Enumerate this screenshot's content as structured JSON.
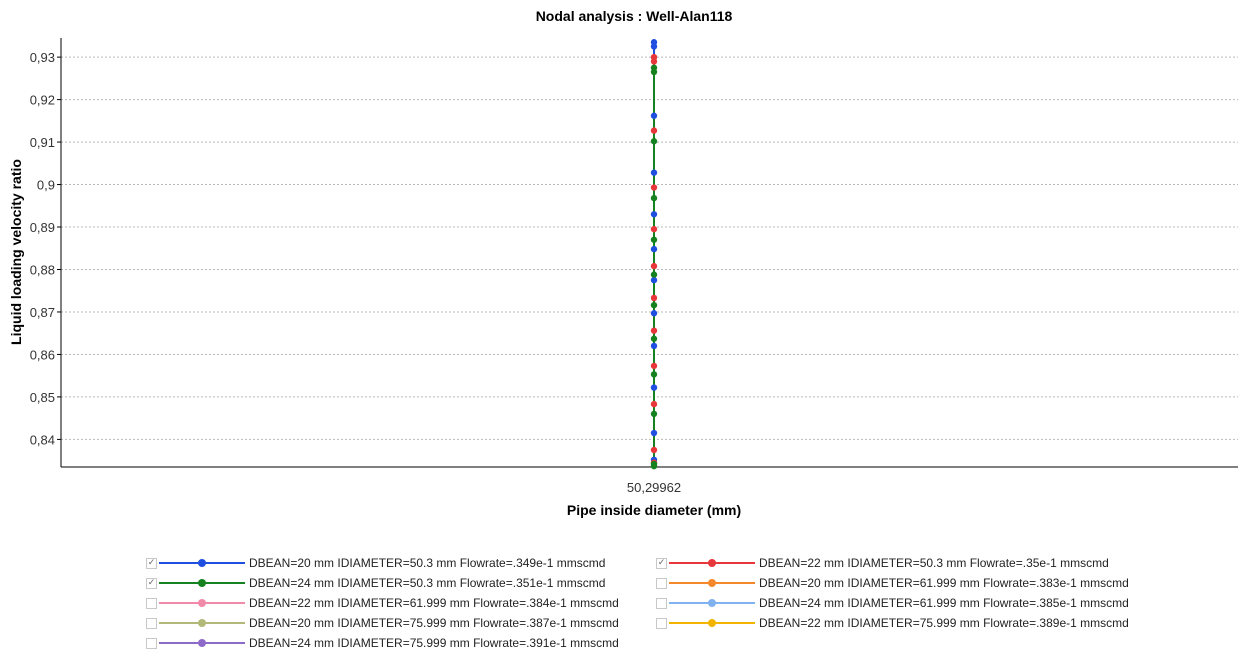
{
  "chart_data": {
    "type": "scatter",
    "title": "Nodal analysis : Well-Alan118",
    "xlabel": "Pipe inside diameter (mm)",
    "ylabel": "Liquid loading velocity ratio",
    "x_ticks": [
      "50,29962"
    ],
    "y_ticks": [
      "0,84",
      "0,85",
      "0,86",
      "0,87",
      "0,88",
      "0,89",
      "0,9",
      "0,91",
      "0,92",
      "0,93"
    ],
    "ylim": [
      0.8335,
      0.9345
    ],
    "grid": true,
    "legend_position": "bottom",
    "x_value": 50.29962,
    "series": [
      {
        "name": "DBEAN=20 mm IDIAMETER=50.3 mm Flowrate=.349e-1 mmscmd",
        "color": "#1f4fe0",
        "checked": true,
        "values": [
          0.9335,
          0.9325,
          0.9162,
          0.9028,
          0.893,
          0.8848,
          0.8775,
          0.8697,
          0.862,
          0.8522,
          0.8415,
          0.8352
        ]
      },
      {
        "name": "DBEAN=22 mm IDIAMETER=50.3 mm Flowrate=.35e-1 mmscmd",
        "color": "#e8373a",
        "checked": true,
        "values": [
          0.93,
          0.929,
          0.9127,
          0.8993,
          0.8895,
          0.8808,
          0.8733,
          0.8656,
          0.8573,
          0.8483,
          0.8375,
          0.8345
        ]
      },
      {
        "name": "DBEAN=24 mm IDIAMETER=50.3 mm Flowrate=.351e-1 mmscmd",
        "color": "#15821f",
        "checked": true,
        "values": [
          0.9275,
          0.9265,
          0.9102,
          0.8968,
          0.887,
          0.8788,
          0.8716,
          0.8637,
          0.8553,
          0.846,
          0.8342,
          0.8337
        ]
      },
      {
        "name": "DBEAN=20 mm IDIAMETER=61.999 mm Flowrate=.383e-1 mmscmd",
        "color": "#f5882a",
        "checked": false,
        "values": []
      },
      {
        "name": "DBEAN=22 mm IDIAMETER=61.999 mm Flowrate=.384e-1 mmscmd",
        "color": "#f08aa8",
        "checked": false,
        "values": []
      },
      {
        "name": "DBEAN=24 mm IDIAMETER=61.999 mm Flowrate=.385e-1 mmscmd",
        "color": "#7fb2ef",
        "checked": false,
        "values": []
      },
      {
        "name": "DBEAN=20 mm IDIAMETER=75.999 mm Flowrate=.387e-1 mmscmd",
        "color": "#b2b978",
        "checked": false,
        "values": []
      },
      {
        "name": "DBEAN=22 mm IDIAMETER=75.999 mm Flowrate=.389e-1 mmscmd",
        "color": "#f2b400",
        "checked": false,
        "values": []
      },
      {
        "name": "DBEAN=24 mm IDIAMETER=75.999 mm Flowrate=.391e-1 mmscmd",
        "color": "#8f6bc9",
        "checked": false,
        "values": []
      }
    ]
  }
}
